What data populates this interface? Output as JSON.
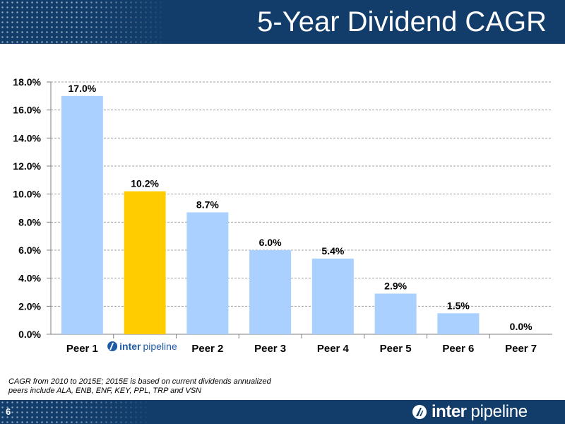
{
  "header": {
    "title": "5-Year Dividend CAGR"
  },
  "colors": {
    "header_bg": "#123d6b",
    "peer_bar": "#a9d0ff",
    "highlight_bar": "#ffcc00",
    "logo_blue": "#1f5aa6"
  },
  "chart_data": {
    "type": "bar",
    "categories": [
      "Peer 1",
      "Inter Pipeline",
      "Peer 2",
      "Peer 3",
      "Peer 4",
      "Peer 5",
      "Peer 6",
      "Peer 7"
    ],
    "values": [
      17.0,
      10.2,
      8.7,
      6.0,
      5.4,
      2.9,
      1.5,
      0.0
    ],
    "value_labels": [
      "17.0%",
      "10.2%",
      "8.7%",
      "6.0%",
      "5.4%",
      "2.9%",
      "1.5%",
      "0.0%"
    ],
    "highlight_index": 1,
    "ylim": [
      0,
      18
    ],
    "yticks": [
      "0.0%",
      "2.0%",
      "4.0%",
      "6.0%",
      "8.0%",
      "10.0%",
      "12.0%",
      "14.0%",
      "16.0%",
      "18.0%"
    ],
    "grid": true
  },
  "chart_logo": {
    "bold": "inter",
    "light": "pipeline"
  },
  "footnote": {
    "line1": "CAGR from 2010 to 2015E; 2015E is based on current dividends annualized",
    "line2": "peers include ALA, ENB, ENF, KEY, PPL, TRP and VSN"
  },
  "footer": {
    "page_number": "6",
    "logo_bold": "inter",
    "logo_light": "pipeline"
  }
}
